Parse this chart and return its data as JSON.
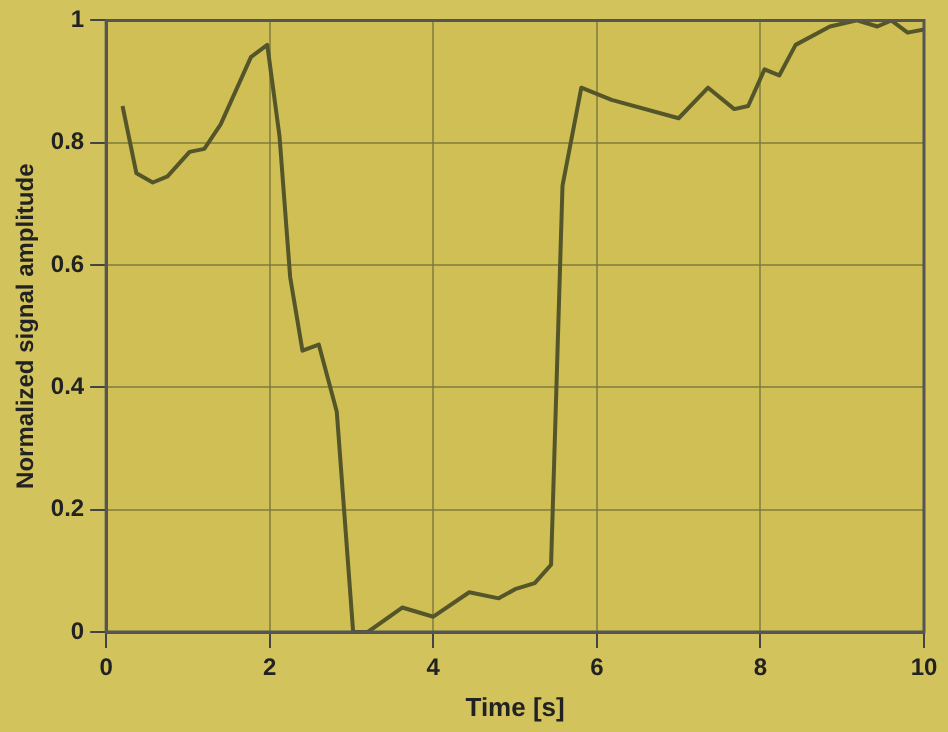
{
  "chart_data": {
    "type": "line",
    "xlabel": "Time [s]",
    "ylabel": "Normalized signal amplitude",
    "x": [
      0.2,
      0.37,
      0.57,
      0.75,
      1.02,
      1.2,
      1.4,
      1.77,
      1.97,
      2.12,
      2.25,
      2.4,
      2.6,
      2.82,
      3.02,
      3.2,
      3.62,
      4.0,
      4.44,
      4.8,
      5.0,
      5.24,
      5.44,
      5.58,
      5.81,
      6.18,
      7.0,
      7.36,
      7.68,
      7.85,
      8.05,
      8.23,
      8.43,
      8.85,
      9.18,
      9.43,
      9.6,
      9.8,
      10
    ],
    "series": [
      {
        "color": "#55552a",
        "values": [
          0.86,
          0.75,
          0.735,
          0.745,
          0.785,
          0.79,
          0.83,
          0.94,
          0.96,
          0.81,
          0.58,
          0.46,
          0.47,
          0.36,
          0,
          0,
          0.04,
          0.025,
          0.065,
          0.055,
          0.07,
          0.08,
          0.11,
          0.73,
          0.89,
          0.87,
          0.84,
          0.89,
          0.855,
          0.86,
          0.92,
          0.91,
          0.96,
          0.99,
          1,
          0.99,
          1,
          0.98,
          0.985
        ]
      }
    ],
    "xlim": [
      0,
      10
    ],
    "xticks": [
      0,
      2,
      4,
      6,
      8,
      10
    ],
    "ylim": [
      0,
      1
    ],
    "yticks": [
      0,
      0.2,
      0.4,
      0.6,
      0.8,
      1
    ],
    "grid": true,
    "legend": false,
    "marker": "none",
    "line_style": "solid"
  }
}
